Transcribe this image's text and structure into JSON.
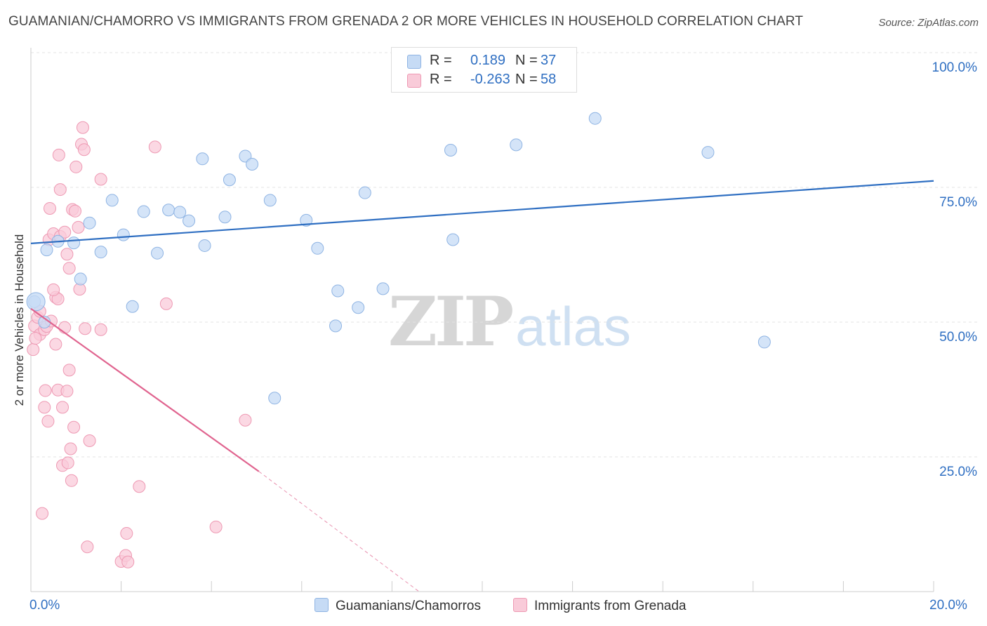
{
  "header": {
    "title": "GUAMANIAN/CHAMORRO VS IMMIGRANTS FROM GRENADA 2 OR MORE VEHICLES IN HOUSEHOLD CORRELATION CHART",
    "source": "Source: ZipAtlas.com"
  },
  "watermark": {
    "zip": "ZIP",
    "atlas": "atlas"
  },
  "legend": {
    "rows": [
      {
        "r_label": "R =",
        "r_value": "0.189",
        "n_label": "N =",
        "n_value": "37",
        "color": "#a9c8ef"
      },
      {
        "r_label": "R =",
        "r_value": "-0.263",
        "n_label": "N =",
        "n_value": "58",
        "color": "#f6b8cb"
      }
    ]
  },
  "colors": {
    "blue_fill": "#c6dbf5",
    "blue_stroke": "#8fb4e3",
    "blue_line": "#2f6fc2",
    "pink_fill": "#f9cbd9",
    "pink_stroke": "#ee99b3",
    "pink_line": "#e0648f",
    "grid": "#e3e3e3",
    "axis_text": "#2f6fc2"
  },
  "chart_data": {
    "type": "scatter",
    "title": "GUAMANIAN/CHAMORRO VS IMMIGRANTS FROM GRENADA 2 OR MORE VEHICLES IN HOUSEHOLD CORRELATION CHART",
    "xlabel": "",
    "ylabel": "2 or more Vehicles in Household",
    "xlim": [
      0,
      20
    ],
    "ylim": [
      0,
      100
    ],
    "x_tick_labels": [
      "0.0%",
      "20.0%"
    ],
    "y_ticks": [
      25,
      50,
      75,
      100
    ],
    "y_tick_labels": [
      "25.0%",
      "50.0%",
      "75.0%",
      "100.0%"
    ],
    "grid": true,
    "legend_placement": "bottom",
    "series": [
      {
        "name": "Guamanians/Chamorros",
        "color": "#a9c8ef",
        "points": [
          [
            0.08,
            53.8
          ],
          [
            0.35,
            63.4
          ],
          [
            0.6,
            65
          ],
          [
            0.95,
            64.7
          ],
          [
            1.3,
            68.4
          ],
          [
            1.55,
            63
          ],
          [
            1.8,
            72.6
          ],
          [
            2.05,
            66.2
          ],
          [
            2.25,
            52.9
          ],
          [
            2.5,
            70.5
          ],
          [
            2.8,
            62.8
          ],
          [
            3.05,
            70.8
          ],
          [
            3.3,
            70.4
          ],
          [
            3.5,
            68.8
          ],
          [
            3.8,
            80.3
          ],
          [
            3.85,
            64.2
          ],
          [
            4.3,
            69.5
          ],
          [
            4.4,
            76.4
          ],
          [
            4.75,
            80.8
          ],
          [
            4.9,
            79.3
          ],
          [
            5.3,
            72.6
          ],
          [
            5.4,
            35.9
          ],
          [
            6.1,
            68.9
          ],
          [
            6.35,
            63.7
          ],
          [
            6.75,
            49.3
          ],
          [
            6.8,
            55.8
          ],
          [
            7.25,
            52.7
          ],
          [
            7.4,
            74
          ],
          [
            7.8,
            56.2
          ],
          [
            9.3,
            81.9
          ],
          [
            9.35,
            65.3
          ],
          [
            10.75,
            82.9
          ],
          [
            12.5,
            87.8
          ],
          [
            15.0,
            81.5
          ],
          [
            16.25,
            46.3
          ],
          [
            0.3,
            50
          ],
          [
            1.1,
            58
          ]
        ],
        "trend": {
          "x": [
            0,
            20
          ],
          "y": [
            64.6,
            76.2
          ]
        }
      },
      {
        "name": "Immigrants from Grenada",
        "color": "#f6b8cb",
        "points": [
          [
            0.05,
            44.9
          ],
          [
            0.08,
            49.3
          ],
          [
            0.15,
            50.9
          ],
          [
            0.2,
            47.7
          ],
          [
            0.25,
            14.5
          ],
          [
            0.3,
            48.6
          ],
          [
            0.32,
            37.3
          ],
          [
            0.3,
            34.2
          ],
          [
            0.35,
            49.2
          ],
          [
            0.38,
            31.6
          ],
          [
            0.4,
            65.3
          ],
          [
            0.42,
            71.1
          ],
          [
            0.45,
            50.2
          ],
          [
            0.5,
            66.4
          ],
          [
            0.55,
            54.6
          ],
          [
            0.55,
            45.9
          ],
          [
            0.6,
            54.3
          ],
          [
            0.6,
            37.4
          ],
          [
            0.62,
            81
          ],
          [
            0.65,
            74.6
          ],
          [
            0.65,
            65.9
          ],
          [
            0.7,
            34.2
          ],
          [
            0.7,
            23.4
          ],
          [
            0.75,
            66.7
          ],
          [
            0.75,
            49
          ],
          [
            0.8,
            62.6
          ],
          [
            0.8,
            37.2
          ],
          [
            0.82,
            23.9
          ],
          [
            0.85,
            41.1
          ],
          [
            0.85,
            60
          ],
          [
            0.88,
            26.5
          ],
          [
            0.9,
            20.6
          ],
          [
            0.92,
            70.9
          ],
          [
            0.95,
            30.5
          ],
          [
            0.98,
            70.6
          ],
          [
            1.0,
            78.8
          ],
          [
            1.05,
            67.6
          ],
          [
            1.08,
            56.1
          ],
          [
            1.12,
            83
          ],
          [
            1.15,
            86.1
          ],
          [
            1.18,
            82
          ],
          [
            1.2,
            48.8
          ],
          [
            1.25,
            8.3
          ],
          [
            1.3,
            28
          ],
          [
            1.55,
            76.5
          ],
          [
            1.55,
            48.6
          ],
          [
            2.0,
            5.6
          ],
          [
            2.1,
            6.7
          ],
          [
            2.12,
            10.8
          ],
          [
            2.15,
            5.5
          ],
          [
            2.4,
            19.5
          ],
          [
            2.75,
            82.5
          ],
          [
            3.0,
            53.4
          ],
          [
            4.1,
            12
          ],
          [
            4.75,
            31.8
          ],
          [
            0.1,
            47
          ],
          [
            0.2,
            52
          ],
          [
            0.5,
            56
          ]
        ],
        "trend": {
          "x": [
            0,
            5.05
          ],
          "y": [
            52.5,
            22.3
          ]
        },
        "trend_extension": {
          "x": [
            5.05,
            8.6
          ],
          "y": [
            22.3,
            0
          ]
        }
      }
    ]
  }
}
